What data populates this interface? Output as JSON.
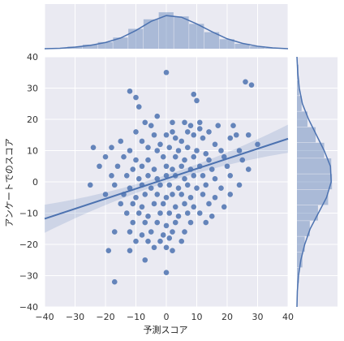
{
  "chart_data": {
    "type": "scatter",
    "xlabel": "予測スコア",
    "ylabel": "アンケートでのスコア",
    "xlim": [
      -40,
      40
    ],
    "ylim": [
      -40,
      40
    ],
    "xticks": [
      -40,
      -30,
      -20,
      -10,
      0,
      10,
      20,
      30,
      40
    ],
    "yticks": [
      -40,
      -30,
      -20,
      -10,
      0,
      10,
      20,
      30,
      40
    ],
    "grid": true,
    "colors": {
      "points": "#4c72b0",
      "background": "#eaeaf2",
      "grid": "#ffffff"
    },
    "regression": {
      "slope": 0.32,
      "intercept": 1.0,
      "ci_at_edges": 4.5,
      "ci_at_center": 1.2
    },
    "points": [
      [
        -12,
        29
      ],
      [
        -10,
        27
      ],
      [
        -9,
        24
      ],
      [
        0,
        35
      ],
      [
        9,
        28
      ],
      [
        10,
        26
      ],
      [
        26,
        32
      ],
      [
        28,
        31
      ],
      [
        -3,
        21
      ],
      [
        -7,
        19
      ],
      [
        -5,
        18
      ],
      [
        2,
        19
      ],
      [
        6,
        19
      ],
      [
        8,
        18
      ],
      [
        11,
        19
      ],
      [
        17,
        18
      ],
      [
        22,
        18
      ],
      [
        -10,
        16
      ],
      [
        -4,
        15
      ],
      [
        0,
        15
      ],
      [
        2,
        16
      ],
      [
        7,
        16
      ],
      [
        11,
        17
      ],
      [
        14,
        16
      ],
      [
        23,
        15
      ],
      [
        27,
        15
      ],
      [
        -15,
        13
      ],
      [
        -8,
        13
      ],
      [
        -2,
        12
      ],
      [
        3,
        14
      ],
      [
        5,
        13
      ],
      [
        9,
        15
      ],
      [
        12,
        14
      ],
      [
        16,
        12
      ],
      [
        21,
        14
      ],
      [
        30,
        12
      ],
      [
        -24,
        11
      ],
      [
        -18,
        11
      ],
      [
        -12,
        10
      ],
      [
        -6,
        11
      ],
      [
        -3,
        10
      ],
      [
        1,
        11
      ],
      [
        4,
        10
      ],
      [
        7,
        11
      ],
      [
        10,
        10
      ],
      [
        13,
        9
      ],
      [
        18,
        10
      ],
      [
        24,
        10
      ],
      [
        -20,
        8
      ],
      [
        -14,
        8
      ],
      [
        -10,
        7
      ],
      [
        -6,
        7
      ],
      [
        -1,
        8
      ],
      [
        3,
        8
      ],
      [
        6,
        7
      ],
      [
        9,
        8
      ],
      [
        14,
        7
      ],
      [
        19,
        8
      ],
      [
        25,
        7
      ],
      [
        -22,
        5
      ],
      [
        -16,
        5
      ],
      [
        -11,
        4
      ],
      [
        -8,
        5
      ],
      [
        -4,
        4
      ],
      [
        0,
        5
      ],
      [
        2,
        4
      ],
      [
        5,
        5
      ],
      [
        8,
        4
      ],
      [
        11,
        5
      ],
      [
        15,
        4
      ],
      [
        20,
        5
      ],
      [
        27,
        4
      ],
      [
        -18,
        2
      ],
      [
        -13,
        2
      ],
      [
        -9,
        1
      ],
      [
        -6,
        2
      ],
      [
        -3,
        1
      ],
      [
        0,
        2
      ],
      [
        3,
        2
      ],
      [
        6,
        1
      ],
      [
        9,
        2
      ],
      [
        12,
        2
      ],
      [
        16,
        1
      ],
      [
        21,
        2
      ],
      [
        -25,
        -1
      ],
      [
        -17,
        -1
      ],
      [
        -12,
        -2
      ],
      [
        -8,
        -1
      ],
      [
        -5,
        -2
      ],
      [
        -2,
        -1
      ],
      [
        1,
        -1
      ],
      [
        4,
        -2
      ],
      [
        7,
        -1
      ],
      [
        10,
        -2
      ],
      [
        13,
        -1
      ],
      [
        18,
        -2
      ],
      [
        24,
        -1
      ],
      [
        -20,
        -4
      ],
      [
        -14,
        -4
      ],
      [
        -10,
        -5
      ],
      [
        -7,
        -4
      ],
      [
        -3,
        -4
      ],
      [
        0,
        -5
      ],
      [
        2,
        -4
      ],
      [
        5,
        -4
      ],
      [
        8,
        -5
      ],
      [
        12,
        -4
      ],
      [
        16,
        -5
      ],
      [
        21,
        -4
      ],
      [
        -15,
        -7
      ],
      [
        -11,
        -7
      ],
      [
        -8,
        -8
      ],
      [
        -4,
        -7
      ],
      [
        -1,
        -7
      ],
      [
        3,
        -8
      ],
      [
        6,
        -7
      ],
      [
        9,
        -8
      ],
      [
        14,
        -7
      ],
      [
        19,
        -8
      ],
      [
        -13,
        -10
      ],
      [
        -9,
        -10
      ],
      [
        -6,
        -11
      ],
      [
        -2,
        -10
      ],
      [
        1,
        -10
      ],
      [
        4,
        -11
      ],
      [
        7,
        -10
      ],
      [
        11,
        -10
      ],
      [
        15,
        -11
      ],
      [
        -11,
        -13
      ],
      [
        -7,
        -13
      ],
      [
        -3,
        -13
      ],
      [
        0,
        -14
      ],
      [
        3,
        -13
      ],
      [
        8,
        -13
      ],
      [
        13,
        -13
      ],
      [
        -17,
        -16
      ],
      [
        -12,
        -16
      ],
      [
        -8,
        -17
      ],
      [
        -5,
        -16
      ],
      [
        -1,
        -17
      ],
      [
        2,
        -16
      ],
      [
        6,
        -16
      ],
      [
        -10,
        -19
      ],
      [
        -6,
        -19
      ],
      [
        -2,
        -19
      ],
      [
        1,
        -18
      ],
      [
        5,
        -19
      ],
      [
        -12,
        -22
      ],
      [
        -4,
        -21
      ],
      [
        0,
        -21
      ],
      [
        2,
        -22
      ],
      [
        -19,
        -22
      ],
      [
        -7,
        -25
      ],
      [
        0,
        -29
      ],
      [
        -17,
        -32
      ]
    ],
    "marginal_x": {
      "bins": [
        -35,
        -30,
        -25,
        -20,
        -15,
        -10,
        -5,
        0,
        5,
        10,
        15,
        20,
        25,
        30,
        35
      ],
      "heights": [
        0.02,
        0.05,
        0.1,
        0.16,
        0.27,
        0.48,
        0.71,
        0.88,
        0.78,
        0.6,
        0.4,
        0.23,
        0.12,
        0.06,
        0.02
      ],
      "kde": [
        0.01,
        0.04,
        0.08,
        0.15,
        0.26,
        0.44,
        0.66,
        0.8,
        0.76,
        0.6,
        0.41,
        0.24,
        0.13,
        0.06,
        0.02
      ]
    },
    "marginal_y": {
      "bins": [
        -35,
        -30,
        -25,
        -20,
        -15,
        -10,
        -5,
        0,
        5,
        10,
        15,
        20,
        25,
        30,
        35
      ],
      "heights": [
        0.02,
        0.05,
        0.14,
        0.2,
        0.33,
        0.54,
        0.8,
        0.9,
        0.88,
        0.7,
        0.48,
        0.27,
        0.12,
        0.06,
        0.04
      ],
      "kde": [
        0.01,
        0.04,
        0.1,
        0.2,
        0.34,
        0.55,
        0.76,
        0.88,
        0.86,
        0.7,
        0.5,
        0.3,
        0.14,
        0.06,
        0.02
      ]
    }
  }
}
